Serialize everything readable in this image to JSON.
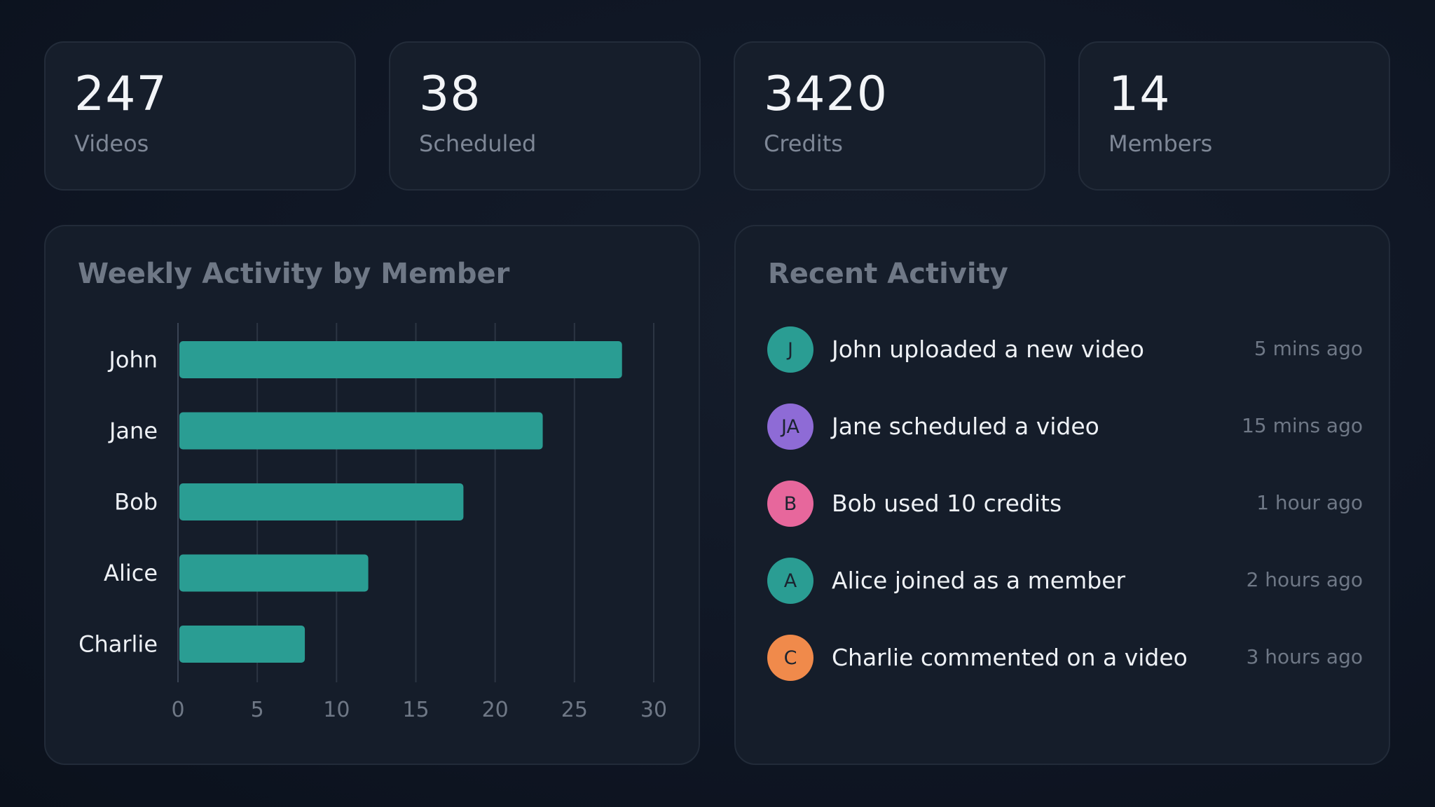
{
  "stats": [
    {
      "value": "247",
      "label": "Videos"
    },
    {
      "value": "38",
      "label": "Scheduled"
    },
    {
      "value": "3420",
      "label": "Credits"
    },
    {
      "value": "14",
      "label": "Members"
    }
  ],
  "chart_panel": {
    "title": "Weekly Activity by Member"
  },
  "chart_data": {
    "type": "bar",
    "orientation": "horizontal",
    "title": "Weekly Activity by Member",
    "categories": [
      "John",
      "Jane",
      "Bob",
      "Alice",
      "Charlie"
    ],
    "values": [
      28,
      23,
      18,
      12,
      8
    ],
    "xlim": [
      0,
      30
    ],
    "xticks": [
      "0",
      "5",
      "10",
      "15",
      "20",
      "25",
      "30"
    ],
    "grid": true,
    "bar_color": "#2a9d93"
  },
  "activity_panel": {
    "title": "Recent Activity",
    "items": [
      {
        "initials": "J",
        "text": "John uploaded a new video",
        "time": "5 mins ago",
        "color": "#2a9d93"
      },
      {
        "initials": "JA",
        "text": "Jane scheduled a video",
        "time": "15 mins ago",
        "color": "#8e6bd6"
      },
      {
        "initials": "B",
        "text": "Bob used 10 credits",
        "time": "1 hour ago",
        "color": "#e7679c"
      },
      {
        "initials": "A",
        "text": "Alice joined as a member",
        "time": "2 hours ago",
        "color": "#2a9d93"
      },
      {
        "initials": "C",
        "text": "Charlie commented on a video",
        "time": "3 hours ago",
        "color": "#f08a4b"
      }
    ]
  }
}
